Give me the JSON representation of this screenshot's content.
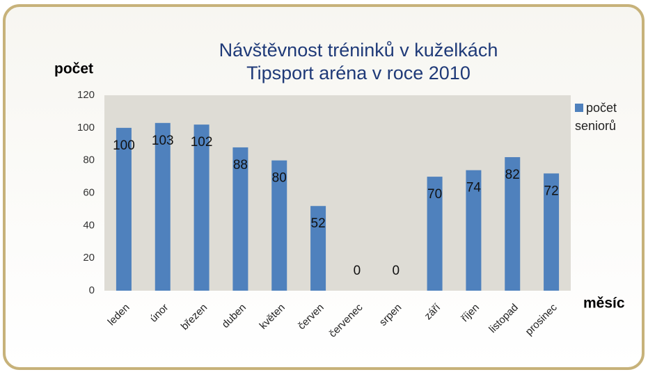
{
  "chart_data": {
    "type": "bar",
    "title": [
      "Návštěvnost tréninků v kuželkách",
      "Tipsport aréna v roce 2010"
    ],
    "y_label": "počet",
    "x_label": "měsíc",
    "categories": [
      "leden",
      "únor",
      "březen",
      "duben",
      "květen",
      "červen",
      "červenec",
      "srpen",
      "září",
      "říjen",
      "listopad",
      "prosinec"
    ],
    "series": [
      {
        "name": "počet seniorů",
        "color": "#4f81bd",
        "values": [
          100,
          103,
          102,
          88,
          80,
          52,
          0,
          0,
          70,
          74,
          82,
          72
        ]
      }
    ],
    "ylim": [
      0,
      120
    ],
    "yticks": [
      0,
      20,
      40,
      60,
      80,
      100,
      120
    ],
    "grid": false,
    "legend": "right"
  }
}
